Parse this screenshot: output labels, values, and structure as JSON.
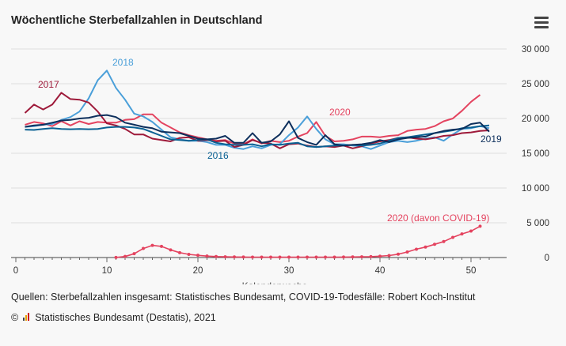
{
  "header": {
    "title": "Wöchentliche Sterbefallzahlen in Deutschland",
    "menu_icon": "hamburger-menu-icon"
  },
  "footer": {
    "source": "Quellen: Sterbefallzahlen insgesamt: Statistisches Bundesamt, COVID-19-Todesfälle: Robert Koch-Institut",
    "copyright_symbol": "©",
    "logo_icon": "destatis-logo-icon",
    "credit": "Statistisches Bundesamt (Destatis), 2021"
  },
  "chart_data": {
    "type": "line",
    "title": "Wöchentliche Sterbefallzahlen in Deutschland",
    "xlabel": "Kalenderwoche",
    "ylabel": "",
    "xlim": [
      0,
      52
    ],
    "ylim": [
      0,
      30000
    ],
    "x_ticks": [
      0,
      10,
      20,
      30,
      40,
      50
    ],
    "y_ticks": [
      0,
      5000,
      10000,
      15000,
      20000,
      25000,
      30000
    ],
    "y_tick_labels": [
      "0",
      "5 000",
      "10 000",
      "15 000",
      "20 000",
      "25 000",
      "30 000"
    ],
    "y_axis_side": "right",
    "grid": "horizontal",
    "series": [
      {
        "name": "2016",
        "label": "2016",
        "color": "#0a6193",
        "x": [
          1,
          2,
          3,
          4,
          5,
          6,
          7,
          8,
          9,
          10,
          11,
          12,
          13,
          14,
          15,
          16,
          17,
          18,
          19,
          20,
          21,
          22,
          23,
          24,
          25,
          26,
          27,
          28,
          29,
          30,
          31,
          32,
          33,
          34,
          35,
          36,
          37,
          38,
          39,
          40,
          41,
          42,
          43,
          44,
          45,
          46,
          47,
          48,
          49,
          50,
          51,
          52
        ],
        "values": [
          18400,
          18350,
          18500,
          18600,
          18500,
          18450,
          18500,
          18450,
          18500,
          18700,
          18800,
          18800,
          18700,
          18500,
          18000,
          17500,
          17000,
          16900,
          16800,
          16900,
          17000,
          16500,
          16300,
          16200,
          16200,
          16300,
          16000,
          16300,
          16200,
          16400,
          16500,
          16000,
          15900,
          16000,
          16100,
          16100,
          16200,
          16100,
          16200,
          16400,
          16800,
          17200,
          17300,
          17500,
          17700,
          17900,
          18100,
          18300,
          18600,
          18700,
          18900,
          19000
        ]
      },
      {
        "name": "2017",
        "label": "2017",
        "color": "#9e1a3a",
        "x": [
          1,
          2,
          3,
          4,
          5,
          6,
          7,
          8,
          9,
          10,
          11,
          12,
          13,
          14,
          15,
          16,
          17,
          18,
          19,
          20,
          21,
          22,
          23,
          24,
          25,
          26,
          27,
          28,
          29,
          30,
          31,
          32,
          33,
          34,
          35,
          36,
          37,
          38,
          39,
          40,
          41,
          42,
          43,
          44,
          45,
          46,
          47,
          48,
          49,
          50,
          51,
          52
        ],
        "values": [
          20800,
          22000,
          21300,
          22000,
          23700,
          22800,
          22700,
          22300,
          21000,
          19300,
          19000,
          18500,
          17700,
          17700,
          17100,
          16900,
          16700,
          17200,
          17300,
          16800,
          16900,
          16700,
          16800,
          15900,
          16200,
          16900,
          16500,
          16400,
          15700,
          16300,
          16400,
          16100,
          15900,
          16000,
          15900,
          16100,
          15700,
          16000,
          16400,
          16700,
          16900,
          17200,
          17300,
          17100,
          17000,
          17200,
          17500,
          17600,
          17900,
          18000,
          18200,
          18300
        ]
      },
      {
        "name": "2018",
        "label": "2018",
        "color": "#4a9fd9",
        "x": [
          1,
          2,
          3,
          4,
          5,
          6,
          7,
          8,
          9,
          10,
          11,
          12,
          13,
          14,
          15,
          16,
          17,
          18,
          19,
          20,
          21,
          22,
          23,
          24,
          25,
          26,
          27,
          28,
          29,
          30,
          31,
          32,
          33,
          34,
          35,
          36,
          37,
          38,
          39,
          40,
          41,
          42,
          43,
          44,
          45,
          46,
          47,
          48,
          49,
          50,
          51,
          52
        ],
        "values": [
          18800,
          18900,
          19100,
          19200,
          19800,
          20200,
          21000,
          22900,
          25500,
          26900,
          24400,
          22700,
          20700,
          20300,
          19500,
          18400,
          17300,
          17000,
          16800,
          16800,
          16600,
          16200,
          16200,
          15800,
          15600,
          16000,
          15700,
          16200,
          16300,
          17600,
          18700,
          20300,
          18500,
          17000,
          16300,
          16300,
          16100,
          16000,
          15600,
          16100,
          16600,
          16800,
          16600,
          16800,
          17100,
          17300,
          16800,
          17700,
          18500,
          18600,
          18900,
          18600
        ]
      },
      {
        "name": "2019",
        "label": "2019",
        "color": "#0d2f5c",
        "x": [
          1,
          2,
          3,
          4,
          5,
          6,
          7,
          8,
          9,
          10,
          11,
          12,
          13,
          14,
          15,
          16,
          17,
          18,
          19,
          20,
          21,
          22,
          23,
          24,
          25,
          26,
          27,
          28,
          29,
          30,
          31,
          32,
          33,
          34,
          35,
          36,
          37,
          38,
          39,
          40,
          41,
          42,
          43,
          44,
          45,
          46,
          47,
          48,
          49,
          50,
          51,
          52
        ],
        "values": [
          18800,
          19000,
          19100,
          19400,
          19700,
          19800,
          20000,
          20100,
          20400,
          20500,
          20200,
          19400,
          19100,
          18800,
          18600,
          18100,
          18000,
          17900,
          17500,
          17100,
          17000,
          17100,
          17500,
          16500,
          16500,
          17900,
          16500,
          16700,
          17700,
          19600,
          17200,
          16600,
          16200,
          17600,
          16300,
          16100,
          16200,
          16300,
          16500,
          16900,
          16600,
          17000,
          17200,
          17300,
          17400,
          17900,
          18200,
          18400,
          18500,
          19200,
          19400,
          18100
        ]
      },
      {
        "name": "2020",
        "label": "2020",
        "color": "#e4435f",
        "x": [
          1,
          2,
          3,
          4,
          5,
          6,
          7,
          8,
          9,
          10,
          11,
          12,
          13,
          14,
          15,
          16,
          17,
          18,
          19,
          20,
          21,
          22,
          23,
          24,
          25,
          26,
          27,
          28,
          29,
          30,
          31,
          32,
          33,
          34,
          35,
          36,
          37,
          38,
          39,
          40,
          41,
          42,
          43,
          44,
          45,
          46,
          47,
          48,
          49,
          50,
          51
        ],
        "values": [
          19100,
          19500,
          19300,
          18900,
          19600,
          19000,
          19600,
          19200,
          19500,
          19400,
          19400,
          19800,
          19900,
          20600,
          20600,
          19400,
          18700,
          18000,
          17600,
          17300,
          17000,
          16800,
          16900,
          16400,
          16300,
          17000,
          16400,
          16800,
          16600,
          16800,
          17400,
          17900,
          19500,
          17500,
          16700,
          16800,
          17000,
          17400,
          17400,
          17300,
          17500,
          17600,
          18200,
          18400,
          18500,
          18900,
          19600,
          20000,
          21100,
          22400,
          23400
        ]
      },
      {
        "name": "2020 (davon COVID-19)",
        "label": "2020 (davon COVID-19)",
        "color": "#e4435f",
        "markers": true,
        "x": [
          11,
          12,
          13,
          14,
          15,
          16,
          17,
          18,
          19,
          20,
          21,
          22,
          23,
          24,
          25,
          26,
          27,
          28,
          29,
          30,
          31,
          32,
          33,
          34,
          35,
          36,
          37,
          38,
          39,
          40,
          41,
          42,
          43,
          44,
          45,
          46,
          47,
          48,
          49,
          50,
          51
        ],
        "values": [
          10,
          150,
          550,
          1300,
          1750,
          1600,
          1100,
          700,
          450,
          320,
          210,
          140,
          100,
          80,
          70,
          60,
          55,
          50,
          50,
          50,
          55,
          60,
          60,
          60,
          60,
          70,
          80,
          100,
          130,
          190,
          280,
          480,
          800,
          1200,
          1500,
          1900,
          2300,
          2900,
          3400,
          3800,
          4500
        ]
      }
    ]
  }
}
